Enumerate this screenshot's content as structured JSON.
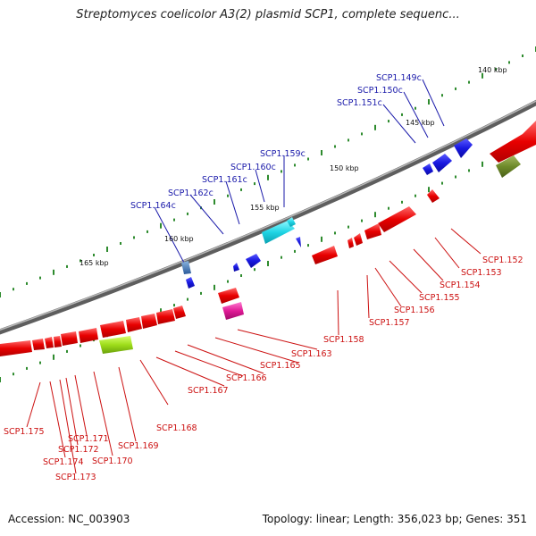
{
  "title": "Streptomyces coelicolor A3(2) plasmid SCP1, complete sequenc...",
  "footer": {
    "accession": "Accession: NC_003903",
    "summary": "Topology: linear; Length: 356,023 bp; Genes: 351"
  },
  "colors": {
    "backbone": "#7a7a7a",
    "forward_gene": "#2020dd",
    "reverse_gene": "#ee1111",
    "blue_label": "#1a1aaa",
    "red_label": "#cc1111",
    "tick_dot": "#2e8b2e"
  },
  "ticks": [
    "140 kbp",
    "145 kbp",
    "150 kbp",
    "155 kbp",
    "160 kbp",
    "165 kbp"
  ],
  "gene_labels_top": [
    "SCP1.149c",
    "SCP1.150c",
    "SCP1.151c",
    "SCP1.159c",
    "SCP1.160c",
    "SCP1.161c",
    "SCP1.162c",
    "SCP1.164c"
  ],
  "gene_labels_bottom": [
    "SCP1.152",
    "SCP1.153",
    "SCP1.154",
    "SCP1.155",
    "SCP1.156",
    "SCP1.157",
    "SCP1.158",
    "SCP1.163",
    "SCP1.165",
    "SCP1.166",
    "SCP1.167",
    "SCP1.168",
    "SCP1.169",
    "SCP1.170",
    "SCP1.171",
    "SCP1.172",
    "SCP1.173",
    "SCP1.174",
    "SCP1.175"
  ]
}
